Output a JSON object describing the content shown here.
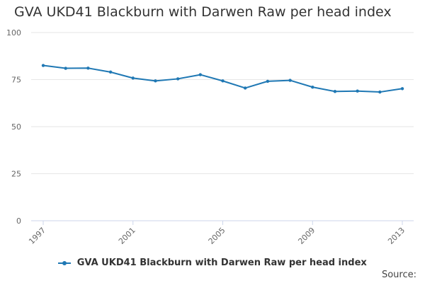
{
  "chart_data": {
    "type": "line",
    "title": "GVA UKD41 Blackburn with Darwen Raw per head index",
    "xlabel": "",
    "ylabel": "",
    "x": [
      1997,
      1998,
      1999,
      2000,
      2001,
      2002,
      2003,
      2004,
      2005,
      2006,
      2007,
      2008,
      2009,
      2010,
      2011,
      2012,
      2013
    ],
    "x_ticks": [
      "1997",
      "2001",
      "2005",
      "2009",
      "2013"
    ],
    "y_ticks": [
      "0",
      "25",
      "50",
      "75",
      "100"
    ],
    "ylim": [
      0,
      100
    ],
    "grid": true,
    "legend_position": "bottom",
    "series": [
      {
        "name": "GVA UKD41 Blackburn with Darwen Raw per head index",
        "color": "#1f78b4",
        "values": [
          82.5,
          81.0,
          81.1,
          79.0,
          75.8,
          74.3,
          75.4,
          77.6,
          74.3,
          70.5,
          74.1,
          74.6,
          71.0,
          68.7,
          68.9,
          68.4,
          70.2
        ]
      }
    ]
  },
  "footer": {
    "source_label": "Source:"
  }
}
